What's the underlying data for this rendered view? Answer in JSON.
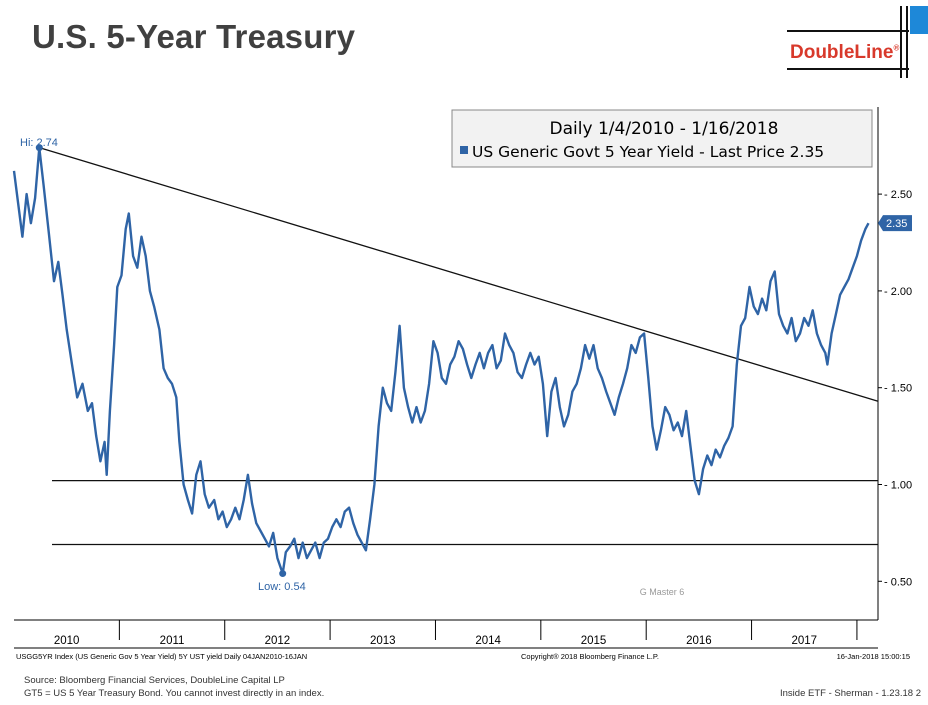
{
  "slide": {
    "title": "U.S. 5-Year Treasury",
    "logo": "DoubleLine",
    "logo_mark": "®",
    "footer": "Inside ETF - Sherman - 1.23.18   2",
    "source_lines": [
      "Source: Bloomberg Financial Services, DoubleLine Capital LP",
      "GT5 = US 5 Year Treasury Bond.  You cannot invest directly in an index."
    ]
  },
  "colors": {
    "series": "#2f64a6",
    "title": "#404040",
    "logo": "#d8392b",
    "accent": "#1e88d8"
  },
  "chart_data": {
    "type": "line",
    "legend_title": "Daily 1/4/2010 - 1/16/2018",
    "legend_series": "US Generic Govt 5 Year Yield - Last Price 2.35",
    "series_name": "US Generic Govt 5 Year Yield",
    "last_price_label": "2.35",
    "ylim": [
      0.3,
      2.95
    ],
    "xlim": [
      2010.0,
      2018.2
    ],
    "y_ticks": [
      {
        "value": 0.5,
        "label": "0.50"
      },
      {
        "value": 1.0,
        "label": "1.00"
      },
      {
        "value": 1.5,
        "label": "1.50"
      },
      {
        "value": 2.0,
        "label": "2.00"
      },
      {
        "value": 2.5,
        "label": "2.50"
      }
    ],
    "x_labels": [
      {
        "value": 2010.5,
        "label": "2010"
      },
      {
        "value": 2011.5,
        "label": "2011"
      },
      {
        "value": 2012.5,
        "label": "2012"
      },
      {
        "value": 2013.5,
        "label": "2013"
      },
      {
        "value": 2014.5,
        "label": "2014"
      },
      {
        "value": 2015.5,
        "label": "2015"
      },
      {
        "value": 2016.5,
        "label": "2016"
      },
      {
        "value": 2017.5,
        "label": "2017"
      }
    ],
    "year_dividers": [
      2011,
      2012,
      2013,
      2014,
      2015,
      2016,
      2017,
      2018
    ],
    "annotations": {
      "hi": {
        "label": "Hi: 2.74",
        "x": 2010.24,
        "y": 2.74
      },
      "low": {
        "label": "Low: 0.54",
        "x": 2012.55,
        "y": 0.54
      },
      "watermark": "G Master 6"
    },
    "trend_line": [
      [
        2010.24,
        2.74
      ],
      [
        2018.2,
        1.43
      ]
    ],
    "support_lines": [
      1.02,
      0.69
    ],
    "bottom_left_text": "USGG5YR Index (US Generic Gov 5 Year Yield) 5Y UST yield  Daily 04JAN2010-16JAN",
    "bottom_center_text": "Copyright® 2018 Bloomberg Finance L.P.",
    "bottom_right_text": "16-Jan-2018 15:00:15",
    "points": [
      [
        2010.0,
        2.62
      ],
      [
        2010.04,
        2.45
      ],
      [
        2010.08,
        2.28
      ],
      [
        2010.12,
        2.5
      ],
      [
        2010.16,
        2.35
      ],
      [
        2010.2,
        2.48
      ],
      [
        2010.24,
        2.74
      ],
      [
        2010.28,
        2.55
      ],
      [
        2010.33,
        2.3
      ],
      [
        2010.38,
        2.05
      ],
      [
        2010.42,
        2.15
      ],
      [
        2010.46,
        1.98
      ],
      [
        2010.5,
        1.8
      ],
      [
        2010.55,
        1.62
      ],
      [
        2010.6,
        1.45
      ],
      [
        2010.65,
        1.52
      ],
      [
        2010.7,
        1.38
      ],
      [
        2010.74,
        1.42
      ],
      [
        2010.78,
        1.25
      ],
      [
        2010.82,
        1.12
      ],
      [
        2010.86,
        1.22
      ],
      [
        2010.88,
        1.05
      ],
      [
        2010.91,
        1.38
      ],
      [
        2010.95,
        1.72
      ],
      [
        2010.98,
        2.02
      ],
      [
        2011.02,
        2.08
      ],
      [
        2011.06,
        2.32
      ],
      [
        2011.09,
        2.4
      ],
      [
        2011.13,
        2.18
      ],
      [
        2011.17,
        2.12
      ],
      [
        2011.21,
        2.28
      ],
      [
        2011.25,
        2.18
      ],
      [
        2011.29,
        2.0
      ],
      [
        2011.33,
        1.92
      ],
      [
        2011.38,
        1.8
      ],
      [
        2011.42,
        1.6
      ],
      [
        2011.46,
        1.55
      ],
      [
        2011.5,
        1.52
      ],
      [
        2011.54,
        1.45
      ],
      [
        2011.57,
        1.22
      ],
      [
        2011.61,
        1.0
      ],
      [
        2011.65,
        0.92
      ],
      [
        2011.69,
        0.85
      ],
      [
        2011.73,
        1.05
      ],
      [
        2011.77,
        1.12
      ],
      [
        2011.81,
        0.95
      ],
      [
        2011.85,
        0.88
      ],
      [
        2011.9,
        0.92
      ],
      [
        2011.94,
        0.82
      ],
      [
        2011.98,
        0.86
      ],
      [
        2012.02,
        0.78
      ],
      [
        2012.06,
        0.82
      ],
      [
        2012.1,
        0.88
      ],
      [
        2012.14,
        0.82
      ],
      [
        2012.18,
        0.92
      ],
      [
        2012.22,
        1.05
      ],
      [
        2012.26,
        0.9
      ],
      [
        2012.3,
        0.8
      ],
      [
        2012.34,
        0.76
      ],
      [
        2012.38,
        0.72
      ],
      [
        2012.42,
        0.68
      ],
      [
        2012.46,
        0.75
      ],
      [
        2012.5,
        0.62
      ],
      [
        2012.55,
        0.54
      ],
      [
        2012.58,
        0.65
      ],
      [
        2012.62,
        0.68
      ],
      [
        2012.66,
        0.72
      ],
      [
        2012.7,
        0.62
      ],
      [
        2012.74,
        0.7
      ],
      [
        2012.78,
        0.62
      ],
      [
        2012.82,
        0.66
      ],
      [
        2012.86,
        0.7
      ],
      [
        2012.9,
        0.62
      ],
      [
        2012.94,
        0.7
      ],
      [
        2012.98,
        0.72
      ],
      [
        2013.02,
        0.78
      ],
      [
        2013.06,
        0.82
      ],
      [
        2013.1,
        0.78
      ],
      [
        2013.14,
        0.86
      ],
      [
        2013.18,
        0.88
      ],
      [
        2013.22,
        0.8
      ],
      [
        2013.26,
        0.74
      ],
      [
        2013.3,
        0.7
      ],
      [
        2013.34,
        0.66
      ],
      [
        2013.38,
        0.82
      ],
      [
        2013.42,
        1.0
      ],
      [
        2013.46,
        1.3
      ],
      [
        2013.5,
        1.5
      ],
      [
        2013.54,
        1.42
      ],
      [
        2013.58,
        1.38
      ],
      [
        2013.62,
        1.58
      ],
      [
        2013.66,
        1.82
      ],
      [
        2013.7,
        1.5
      ],
      [
        2013.74,
        1.4
      ],
      [
        2013.78,
        1.32
      ],
      [
        2013.82,
        1.4
      ],
      [
        2013.86,
        1.32
      ],
      [
        2013.9,
        1.38
      ],
      [
        2013.94,
        1.52
      ],
      [
        2013.98,
        1.74
      ],
      [
        2014.02,
        1.68
      ],
      [
        2014.06,
        1.55
      ],
      [
        2014.1,
        1.52
      ],
      [
        2014.14,
        1.62
      ],
      [
        2014.18,
        1.66
      ],
      [
        2014.22,
        1.74
      ],
      [
        2014.26,
        1.7
      ],
      [
        2014.3,
        1.62
      ],
      [
        2014.34,
        1.55
      ],
      [
        2014.38,
        1.62
      ],
      [
        2014.42,
        1.68
      ],
      [
        2014.46,
        1.6
      ],
      [
        2014.5,
        1.68
      ],
      [
        2014.54,
        1.72
      ],
      [
        2014.58,
        1.6
      ],
      [
        2014.62,
        1.64
      ],
      [
        2014.66,
        1.78
      ],
      [
        2014.7,
        1.72
      ],
      [
        2014.74,
        1.68
      ],
      [
        2014.78,
        1.58
      ],
      [
        2014.82,
        1.55
      ],
      [
        2014.86,
        1.62
      ],
      [
        2014.9,
        1.68
      ],
      [
        2014.94,
        1.62
      ],
      [
        2014.98,
        1.66
      ],
      [
        2015.02,
        1.52
      ],
      [
        2015.06,
        1.25
      ],
      [
        2015.1,
        1.48
      ],
      [
        2015.14,
        1.55
      ],
      [
        2015.18,
        1.4
      ],
      [
        2015.22,
        1.3
      ],
      [
        2015.26,
        1.36
      ],
      [
        2015.3,
        1.48
      ],
      [
        2015.34,
        1.52
      ],
      [
        2015.38,
        1.6
      ],
      [
        2015.42,
        1.72
      ],
      [
        2015.46,
        1.65
      ],
      [
        2015.5,
        1.72
      ],
      [
        2015.54,
        1.6
      ],
      [
        2015.58,
        1.55
      ],
      [
        2015.62,
        1.48
      ],
      [
        2015.66,
        1.42
      ],
      [
        2015.7,
        1.36
      ],
      [
        2015.74,
        1.45
      ],
      [
        2015.78,
        1.52
      ],
      [
        2015.82,
        1.6
      ],
      [
        2015.86,
        1.72
      ],
      [
        2015.9,
        1.68
      ],
      [
        2015.94,
        1.76
      ],
      [
        2015.98,
        1.78
      ],
      [
        2016.02,
        1.55
      ],
      [
        2016.06,
        1.3
      ],
      [
        2016.1,
        1.18
      ],
      [
        2016.14,
        1.28
      ],
      [
        2016.18,
        1.4
      ],
      [
        2016.22,
        1.36
      ],
      [
        2016.26,
        1.28
      ],
      [
        2016.3,
        1.32
      ],
      [
        2016.34,
        1.25
      ],
      [
        2016.38,
        1.38
      ],
      [
        2016.42,
        1.2
      ],
      [
        2016.46,
        1.02
      ],
      [
        2016.5,
        0.95
      ],
      [
        2016.54,
        1.08
      ],
      [
        2016.58,
        1.15
      ],
      [
        2016.62,
        1.1
      ],
      [
        2016.66,
        1.18
      ],
      [
        2016.7,
        1.14
      ],
      [
        2016.74,
        1.2
      ],
      [
        2016.78,
        1.24
      ],
      [
        2016.82,
        1.3
      ],
      [
        2016.86,
        1.62
      ],
      [
        2016.9,
        1.82
      ],
      [
        2016.94,
        1.86
      ],
      [
        2016.98,
        2.02
      ],
      [
        2017.02,
        1.92
      ],
      [
        2017.06,
        1.88
      ],
      [
        2017.1,
        1.96
      ],
      [
        2017.14,
        1.9
      ],
      [
        2017.18,
        2.05
      ],
      [
        2017.22,
        2.1
      ],
      [
        2017.26,
        1.88
      ],
      [
        2017.3,
        1.82
      ],
      [
        2017.34,
        1.78
      ],
      [
        2017.38,
        1.86
      ],
      [
        2017.42,
        1.74
      ],
      [
        2017.46,
        1.78
      ],
      [
        2017.5,
        1.86
      ],
      [
        2017.54,
        1.82
      ],
      [
        2017.58,
        1.9
      ],
      [
        2017.62,
        1.78
      ],
      [
        2017.66,
        1.72
      ],
      [
        2017.7,
        1.68
      ],
      [
        2017.72,
        1.62
      ],
      [
        2017.76,
        1.78
      ],
      [
        2017.8,
        1.88
      ],
      [
        2017.84,
        1.98
      ],
      [
        2017.88,
        2.02
      ],
      [
        2017.92,
        2.06
      ],
      [
        2017.96,
        2.12
      ],
      [
        2018.0,
        2.18
      ],
      [
        2018.04,
        2.26
      ],
      [
        2018.08,
        2.32
      ],
      [
        2018.11,
        2.35
      ]
    ]
  }
}
